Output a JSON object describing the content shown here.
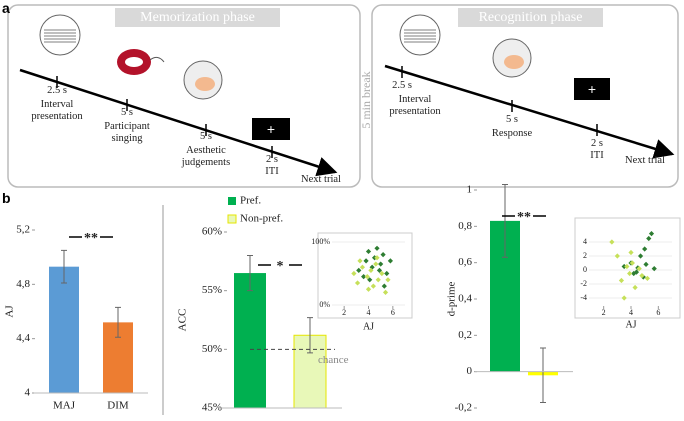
{
  "panel_a": {
    "label": "a",
    "break": "5 min break",
    "fixation": "+",
    "phases": [
      {
        "title": "Memorization phase",
        "events": [
          {
            "time": "2.5 s",
            "label": "Interval presentation"
          },
          {
            "time": "5 s",
            "label": "Participant singing"
          },
          {
            "time": "5 s",
            "label": "Aesthetic judgements"
          },
          {
            "time": "2 s",
            "label": "ITI"
          }
        ],
        "end": "Next trial"
      },
      {
        "title": "Recognition phase",
        "events": [
          {
            "time": "2.5 s",
            "label": "Interval presentation"
          },
          {
            "time": "5 s",
            "label": "Response"
          },
          {
            "time": "2 s",
            "label": "ITI"
          }
        ],
        "end": "Next trial"
      }
    ]
  },
  "panel_b_label": "b",
  "chart_data": [
    {
      "type": "bar",
      "y_label": "AJ",
      "categories": [
        "MAJ",
        "DIM"
      ],
      "values": [
        4.93,
        4.52
      ],
      "errors": [
        0.12,
        0.11
      ],
      "colors": [
        "#5b9bd5",
        "#ed7d31"
      ],
      "ylim": [
        4,
        5.2
      ],
      "yticks": [
        4,
        {
          "value": 4.4,
          "label": "4,4"
        },
        {
          "value": 4.8,
          "label": "4,8"
        },
        {
          "value": 5.2,
          "label": "5,2"
        }
      ],
      "annotation": "**"
    },
    {
      "type": "bar",
      "y_label": "ACC",
      "series": [
        {
          "name": "Pref.",
          "color": "#00b050",
          "values": [
            56.5
          ],
          "errors": [
            1.5
          ]
        },
        {
          "name": "Non-pref.",
          "color": "#e8f8b8",
          "values": [
            51.2
          ],
          "errors": [
            1.5
          ]
        }
      ],
      "ylim": [
        45,
        60
      ],
      "yticks": [
        {
          "value": 45,
          "label": "45%"
        },
        {
          "value": 50,
          "label": "50%"
        },
        {
          "value": 55,
          "label": "55%"
        },
        {
          "value": 60,
          "label": "60%"
        }
      ],
      "chance": {
        "value": 50,
        "label": "chance"
      },
      "annotation": "*"
    },
    {
      "type": "scatter",
      "x_label": "AJ",
      "xlim": [
        1,
        7
      ],
      "ylim": [
        0,
        100
      ],
      "xticks": [
        2,
        4,
        6
      ],
      "yticks": [
        {
          "value": 0,
          "label": "0%"
        },
        {
          "value": 100,
          "label": "100%"
        }
      ],
      "series": [
        {
          "color": "#2e7d32",
          "x": [
            3.2,
            3.8,
            4.0,
            4.3,
            4.5,
            4.7,
            5.0,
            5.2,
            5.5,
            5.8,
            4.1,
            4.9,
            5.3,
            3.6
          ],
          "y": [
            55,
            70,
            85,
            60,
            75,
            90,
            65,
            80,
            50,
            70,
            40,
            55,
            30,
            45
          ]
        },
        {
          "color": "#c6e05a",
          "x": [
            2.8,
            3.1,
            3.5,
            3.9,
            4.2,
            4.4,
            4.6,
            4.8,
            5.1,
            5.4,
            3.3,
            4.0,
            4.7,
            5.6
          ],
          "y": [
            50,
            35,
            60,
            45,
            55,
            30,
            65,
            40,
            50,
            20,
            70,
            25,
            75,
            40
          ]
        }
      ]
    },
    {
      "type": "bar",
      "y_label": "d-prime",
      "values": [
        0.83,
        -0.02
      ],
      "errors": [
        0.2,
        0.15
      ],
      "colors": [
        "#00b050",
        "#ffff00"
      ],
      "ylim": [
        -0.2,
        1
      ],
      "yticks": [
        {
          "value": -0.2,
          "label": "-0,2"
        },
        0,
        {
          "value": 0.2,
          "label": "0,2"
        },
        {
          "value": 0.4,
          "label": "0,4"
        },
        {
          "value": 0.6,
          "label": "0,6"
        },
        {
          "value": 0.8,
          "label": "0,8"
        },
        1
      ],
      "annotation": "**"
    },
    {
      "type": "scatter",
      "x_label": "AJ",
      "xlim": [
        1,
        7
      ],
      "ylim": [
        -5,
        6
      ],
      "xticks": [
        2,
        4,
        6
      ],
      "yticks": [
        -4,
        -2,
        0,
        2,
        4
      ],
      "series": [
        {
          "color": "#2e7d32",
          "x": [
            3.5,
            4.0,
            4.2,
            4.5,
            4.7,
            4.9,
            5.1,
            5.3,
            5.5,
            5.7,
            5.0,
            4.4
          ],
          "y": [
            0.5,
            1,
            -0.5,
            0.3,
            2,
            -1,
            0.8,
            4.5,
            5.2,
            0.2,
            3,
            -0.3
          ]
        },
        {
          "color": "#c6e05a",
          "x": [
            2.6,
            3.0,
            3.3,
            3.7,
            3.9,
            4.1,
            4.3,
            4.6,
            4.8,
            5.2,
            3.5,
            4.0
          ],
          "y": [
            4,
            2,
            -1.5,
            0.5,
            -0.5,
            1,
            -2.5,
            0.2,
            -0.8,
            -1.2,
            -4,
            2.5
          ]
        }
      ]
    }
  ]
}
